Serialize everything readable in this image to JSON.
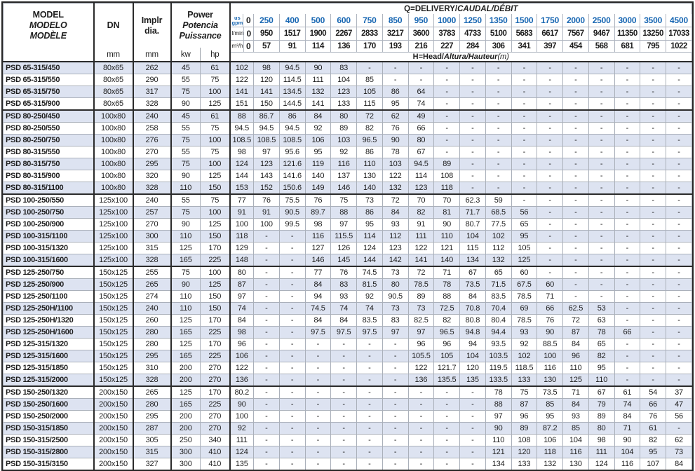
{
  "colors": {
    "accent_blue": "#1766b2",
    "stripe_background": "#dde3f1",
    "border_dark": "#2b2b2b"
  },
  "table": {
    "header": {
      "model": {
        "l1": "MODEL",
        "l2": "MODELO",
        "l3": "MODÈLE"
      },
      "dn": {
        "label": "DN",
        "unit": "mm"
      },
      "impeller": {
        "l1": "Implr",
        "l2": "dia.",
        "unit": "mm"
      },
      "power": {
        "l1": "Power",
        "l2": "Potencia",
        "l3": "Puissance",
        "kw": "kw",
        "hp": "hp"
      },
      "q_title": {
        "plain": "Q=DELIVERY/",
        "italic": "CAUDAL/DÉBIT"
      },
      "h_title": {
        "plain": "H=Head/",
        "italic": "Altura/Hauteur",
        "suffix": "(m)"
      },
      "units": {
        "gpm_top": "us",
        "gpm_bottom": "gpm",
        "lmin": "l/min",
        "m3h": "m³/h"
      },
      "gpm": [
        "0",
        "250",
        "400",
        "500",
        "600",
        "750",
        "850",
        "950",
        "1000",
        "1250",
        "1350",
        "1500",
        "1750",
        "2000",
        "2500",
        "3000",
        "3500",
        "4500"
      ],
      "lmin": [
        "0",
        "950",
        "1517",
        "1900",
        "2267",
        "2833",
        "3217",
        "3600",
        "3783",
        "4733",
        "5100",
        "5683",
        "6617",
        "7567",
        "9467",
        "11350",
        "13250",
        "17033"
      ],
      "m3h": [
        "0",
        "57",
        "91",
        "114",
        "136",
        "170",
        "193",
        "216",
        "227",
        "284",
        "306",
        "341",
        "397",
        "454",
        "568",
        "681",
        "795",
        "1022"
      ]
    },
    "rows": [
      {
        "model": "PSD 65-315/450",
        "dn": "80x65",
        "dia": "262",
        "kw": "45",
        "hp": "61",
        "head": [
          "102",
          "98",
          "94.5",
          "90",
          "83",
          "-",
          "-",
          "-",
          "-",
          "-",
          "-",
          "-",
          "-",
          "-",
          "-",
          "-",
          "-",
          "-"
        ]
      },
      {
        "model": "PSD 65-315/550",
        "dn": "80x65",
        "dia": "290",
        "kw": "55",
        "hp": "75",
        "head": [
          "122",
          "120",
          "114.5",
          "111",
          "104",
          "85",
          "-",
          "-",
          "-",
          "-",
          "-",
          "-",
          "-",
          "-",
          "-",
          "-",
          "-",
          "-"
        ]
      },
      {
        "model": "PSD 65-315/750",
        "dn": "80x65",
        "dia": "317",
        "kw": "75",
        "hp": "100",
        "head": [
          "141",
          "141",
          "134.5",
          "132",
          "123",
          "105",
          "86",
          "64",
          "-",
          "-",
          "-",
          "-",
          "-",
          "-",
          "-",
          "-",
          "-",
          "-"
        ]
      },
      {
        "model": "PSD 65-315/900",
        "dn": "80x65",
        "dia": "328",
        "kw": "90",
        "hp": "125",
        "head": [
          "151",
          "150",
          "144.5",
          "141",
          "133",
          "115",
          "95",
          "74",
          "-",
          "-",
          "-",
          "-",
          "-",
          "-",
          "-",
          "-",
          "-",
          "-"
        ]
      },
      {
        "model": "PSD 80-250/450",
        "dn": "100x80",
        "dia": "240",
        "kw": "45",
        "hp": "61",
        "head": [
          "88",
          "86.7",
          "86",
          "84",
          "80",
          "72",
          "62",
          "49",
          "-",
          "-",
          "-",
          "-",
          "-",
          "-",
          "-",
          "-",
          "-",
          "-"
        ]
      },
      {
        "model": "PSD 80-250/550",
        "dn": "100x80",
        "dia": "258",
        "kw": "55",
        "hp": "75",
        "head": [
          "94.5",
          "94.5",
          "94.5",
          "92",
          "89",
          "82",
          "76",
          "66",
          "-",
          "-",
          "-",
          "-",
          "-",
          "-",
          "-",
          "-",
          "-",
          "-"
        ]
      },
      {
        "model": "PSD 80-250/750",
        "dn": "100x80",
        "dia": "276",
        "kw": "75",
        "hp": "100",
        "head": [
          "108.5",
          "108.5",
          "108.5",
          "106",
          "103",
          "96.5",
          "90",
          "80",
          "-",
          "-",
          "-",
          "-",
          "-",
          "-",
          "-",
          "-",
          "-",
          "-"
        ]
      },
      {
        "model": "PSD 80-315/550",
        "dn": "100x80",
        "dia": "270",
        "kw": "55",
        "hp": "75",
        "head": [
          "98",
          "97",
          "95.6",
          "95",
          "92",
          "86",
          "78",
          "67",
          "-",
          "-",
          "-",
          "-",
          "-",
          "-",
          "-",
          "-",
          "-",
          "-"
        ]
      },
      {
        "model": "PSD 80-315/750",
        "dn": "100x80",
        "dia": "295",
        "kw": "75",
        "hp": "100",
        "head": [
          "124",
          "123",
          "121.6",
          "119",
          "116",
          "110",
          "103",
          "94.5",
          "89",
          "-",
          "-",
          "-",
          "-",
          "-",
          "-",
          "-",
          "-",
          "-"
        ]
      },
      {
        "model": "PSD 80-315/900",
        "dn": "100x80",
        "dia": "320",
        "kw": "90",
        "hp": "125",
        "head": [
          "144",
          "143",
          "141.6",
          "140",
          "137",
          "130",
          "122",
          "114",
          "108",
          "-",
          "-",
          "-",
          "-",
          "-",
          "-",
          "-",
          "-",
          "-"
        ]
      },
      {
        "model": "PSD 80-315/1100",
        "dn": "100x80",
        "dia": "328",
        "kw": "110",
        "hp": "150",
        "head": [
          "153",
          "152",
          "150.6",
          "149",
          "146",
          "140",
          "132",
          "123",
          "118",
          "-",
          "-",
          "-",
          "-",
          "-",
          "-",
          "-",
          "-",
          "-"
        ]
      },
      {
        "model": "PSD 100-250/550",
        "dn": "125x100",
        "dia": "240",
        "kw": "55",
        "hp": "75",
        "head": [
          "77",
          "76",
          "75.5",
          "76",
          "75",
          "73",
          "72",
          "70",
          "70",
          "62.3",
          "59",
          "-",
          "-",
          "-",
          "-",
          "-",
          "-",
          "-"
        ]
      },
      {
        "model": "PSD 100-250/750",
        "dn": "125x100",
        "dia": "257",
        "kw": "75",
        "hp": "100",
        "head": [
          "91",
          "91",
          "90.5",
          "89.7",
          "88",
          "86",
          "84",
          "82",
          "81",
          "71.7",
          "68.5",
          "56",
          "-",
          "-",
          "-",
          "-",
          "-",
          "-"
        ]
      },
      {
        "model": "PSD 100-250/900",
        "dn": "125x100",
        "dia": "270",
        "kw": "90",
        "hp": "125",
        "head": [
          "100",
          "100",
          "99.5",
          "98",
          "97",
          "95",
          "93",
          "91",
          "90",
          "80.7",
          "77.5",
          "65",
          "-",
          "-",
          "-",
          "-",
          "-",
          "-"
        ]
      },
      {
        "model": "PSD 100-315/1100",
        "dn": "125x100",
        "dia": "300",
        "kw": "110",
        "hp": "150",
        "head": [
          "118",
          "-",
          "-",
          "116",
          "115.5",
          "114",
          "112",
          "111",
          "110",
          "104",
          "102",
          "95",
          "-",
          "-",
          "-",
          "-",
          "-",
          "-"
        ]
      },
      {
        "model": "PSD 100-315/1320",
        "dn": "125x100",
        "dia": "315",
        "kw": "125",
        "hp": "170",
        "head": [
          "129",
          "-",
          "-",
          "127",
          "126",
          "124",
          "123",
          "122",
          "121",
          "115",
          "112",
          "105",
          "-",
          "-",
          "-",
          "-",
          "-",
          "-"
        ]
      },
      {
        "model": "PSD 100-315/1600",
        "dn": "125x100",
        "dia": "328",
        "kw": "165",
        "hp": "225",
        "head": [
          "148",
          "-",
          "-",
          "146",
          "145",
          "144",
          "142",
          "141",
          "140",
          "134",
          "132",
          "125",
          "-",
          "-",
          "-",
          "-",
          "-",
          "-"
        ]
      },
      {
        "model": "PSD 125-250/750",
        "dn": "150x125",
        "dia": "255",
        "kw": "75",
        "hp": "100",
        "head": [
          "80",
          "-",
          "-",
          "77",
          "76",
          "74.5",
          "73",
          "72",
          "71",
          "67",
          "65",
          "60",
          "-",
          "-",
          "-",
          "-",
          "-",
          "-"
        ]
      },
      {
        "model": "PSD 125-250/900",
        "dn": "150x125",
        "dia": "265",
        "kw": "90",
        "hp": "125",
        "head": [
          "87",
          "-",
          "-",
          "84",
          "83",
          "81.5",
          "80",
          "78.5",
          "78",
          "73.5",
          "71.5",
          "67.5",
          "60",
          "-",
          "-",
          "-",
          "-",
          "-"
        ]
      },
      {
        "model": "PSD 125-250/1100",
        "dn": "150x125",
        "dia": "274",
        "kw": "110",
        "hp": "150",
        "head": [
          "97",
          "-",
          "-",
          "94",
          "93",
          "92",
          "90.5",
          "89",
          "88",
          "84",
          "83.5",
          "78.5",
          "71",
          "-",
          "-",
          "-",
          "-",
          "-"
        ]
      },
      {
        "model": "PSD 125-250H/1100",
        "dn": "150x125",
        "dia": "240",
        "kw": "110",
        "hp": "150",
        "head": [
          "74",
          "-",
          "-",
          "74.5",
          "74",
          "74",
          "73",
          "73",
          "72.5",
          "70.8",
          "70.4",
          "69",
          "66",
          "62.5",
          "53",
          "-",
          "-",
          "-"
        ]
      },
      {
        "model": "PSD 125-250H/1320",
        "dn": "150x125",
        "dia": "260",
        "kw": "125",
        "hp": "170",
        "head": [
          "84",
          "-",
          "-",
          "84",
          "84",
          "83.5",
          "83",
          "82.5",
          "82",
          "80.8",
          "80.4",
          "78.5",
          "76",
          "72",
          "63",
          "-",
          "-",
          "-"
        ]
      },
      {
        "model": "PSD 125-250H/1600",
        "dn": "150x125",
        "dia": "280",
        "kw": "165",
        "hp": "225",
        "head": [
          "98",
          "-",
          "-",
          "97.5",
          "97.5",
          "97.5",
          "97",
          "97",
          "96.5",
          "94.8",
          "94.4",
          "93",
          "90",
          "87",
          "78",
          "66",
          "-",
          "-"
        ]
      },
      {
        "model": "PSD 125-315/1320",
        "dn": "150x125",
        "dia": "280",
        "kw": "125",
        "hp": "170",
        "head": [
          "96",
          "-",
          "-",
          "-",
          "-",
          "-",
          "-",
          "96",
          "96",
          "94",
          "93.5",
          "92",
          "88.5",
          "84",
          "65",
          "-",
          "-",
          "-"
        ]
      },
      {
        "model": "PSD 125-315/1600",
        "dn": "150x125",
        "dia": "295",
        "kw": "165",
        "hp": "225",
        "head": [
          "106",
          "-",
          "-",
          "-",
          "-",
          "-",
          "-",
          "105.5",
          "105",
          "104",
          "103.5",
          "102",
          "100",
          "96",
          "82",
          "-",
          "-",
          "-"
        ]
      },
      {
        "model": "PSD 125-315/1850",
        "dn": "150x125",
        "dia": "310",
        "kw": "200",
        "hp": "270",
        "head": [
          "122",
          "-",
          "-",
          "-",
          "-",
          "-",
          "-",
          "122",
          "121.7",
          "120",
          "119.5",
          "118.5",
          "116",
          "110",
          "95",
          "-",
          "-",
          "-"
        ]
      },
      {
        "model": "PSD 125-315/2000",
        "dn": "150x125",
        "dia": "328",
        "kw": "200",
        "hp": "270",
        "head": [
          "136",
          "-",
          "-",
          "-",
          "-",
          "-",
          "-",
          "136",
          "135.5",
          "135",
          "133.5",
          "133",
          "130",
          "125",
          "110",
          "-",
          "-",
          "-"
        ]
      },
      {
        "model": "PSD 150-250/1320",
        "dn": "200x150",
        "dia": "265",
        "kw": "125",
        "hp": "170",
        "head": [
          "80.2",
          "-",
          "-",
          "-",
          "-",
          "-",
          "-",
          "-",
          "-",
          "-",
          "78",
          "75",
          "73.5",
          "71",
          "67",
          "61",
          "54",
          "37"
        ]
      },
      {
        "model": "PSD 150-250/1600",
        "dn": "200x150",
        "dia": "280",
        "kw": "165",
        "hp": "225",
        "head": [
          "90",
          "-",
          "-",
          "-",
          "-",
          "-",
          "-",
          "-",
          "-",
          "-",
          "88",
          "87",
          "85",
          "84",
          "79",
          "74",
          "66",
          "47"
        ]
      },
      {
        "model": "PSD 150-250/2000",
        "dn": "200x150",
        "dia": "295",
        "kw": "200",
        "hp": "270",
        "head": [
          "100",
          "-",
          "-",
          "-",
          "-",
          "-",
          "-",
          "-",
          "-",
          "-",
          "97",
          "96",
          "95",
          "93",
          "89",
          "84",
          "76",
          "56"
        ]
      },
      {
        "model": "PSD 150-315/1850",
        "dn": "200x150",
        "dia": "287",
        "kw": "200",
        "hp": "270",
        "head": [
          "92",
          "-",
          "-",
          "-",
          "-",
          "-",
          "-",
          "-",
          "-",
          "-",
          "90",
          "89",
          "87.2",
          "85",
          "80",
          "71",
          "61",
          "-"
        ]
      },
      {
        "model": "PSD 150-315/2500",
        "dn": "200x150",
        "dia": "305",
        "kw": "250",
        "hp": "340",
        "head": [
          "111",
          "-",
          "-",
          "-",
          "-",
          "-",
          "-",
          "-",
          "-",
          "-",
          "110",
          "108",
          "106",
          "104",
          "98",
          "90",
          "82",
          "62"
        ]
      },
      {
        "model": "PSD 150-315/2800",
        "dn": "200x150",
        "dia": "315",
        "kw": "300",
        "hp": "410",
        "head": [
          "124",
          "-",
          "-",
          "-",
          "-",
          "-",
          "-",
          "-",
          "-",
          "-",
          "121",
          "120",
          "118",
          "116",
          "111",
          "104",
          "95",
          "73"
        ]
      },
      {
        "model": "PSD 150-315/3150",
        "dn": "200x150",
        "dia": "327",
        "kw": "300",
        "hp": "410",
        "head": [
          "135",
          "-",
          "-",
          "-",
          "-",
          "-",
          "-",
          "-",
          "-",
          "-",
          "134",
          "133",
          "132",
          "130",
          "124",
          "116",
          "107",
          "84"
        ]
      }
    ]
  }
}
